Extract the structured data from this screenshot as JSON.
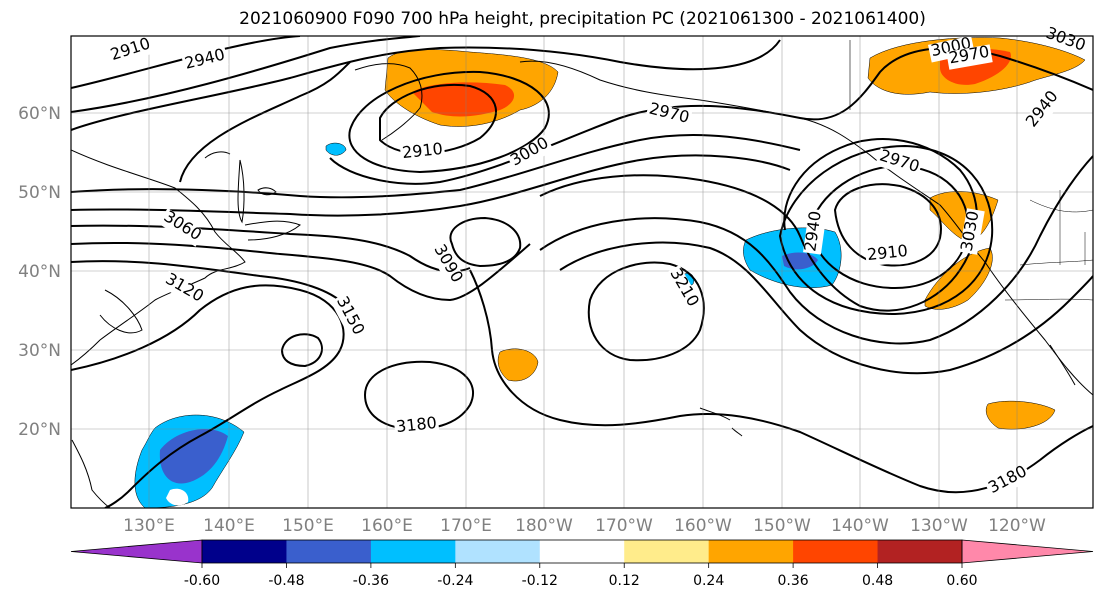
{
  "title": "2021060900 F090 700 hPa height, precipitation PC (2021061300 - 2021061400)",
  "axes": {
    "lat_labels": [
      "60°N",
      "50°N",
      "40°N",
      "30°N",
      "20°N"
    ],
    "lon_labels": [
      "130°E",
      "140°E",
      "150°E",
      "160°E",
      "170°E",
      "180°W",
      "170°W",
      "160°W",
      "150°W",
      "140°W",
      "130°W",
      "120°W"
    ],
    "label_color": "#808080"
  },
  "contour_labels": [
    "2910",
    "2940",
    "2970",
    "3000",
    "2910",
    "3000",
    "2970",
    "2970",
    "2940",
    "3060",
    "3090",
    "3120",
    "3150",
    "3180",
    "3210",
    "2940",
    "2910",
    "3030",
    "3180",
    "3030",
    "2940"
  ],
  "colorbar": {
    "colors": [
      "#9933cc",
      "#00008b",
      "#3a5fcd",
      "#00bfff",
      "#b0e2ff",
      "#ffffff",
      "#ffec8b",
      "#ffa500",
      "#ff4500",
      "#b22222",
      "#ff88aa"
    ],
    "tick_labels": [
      "-0.60",
      "-0.48",
      "-0.36",
      "-0.24",
      "-0.12",
      "0.12",
      "0.24",
      "0.36",
      "0.48",
      "0.60"
    ]
  }
}
